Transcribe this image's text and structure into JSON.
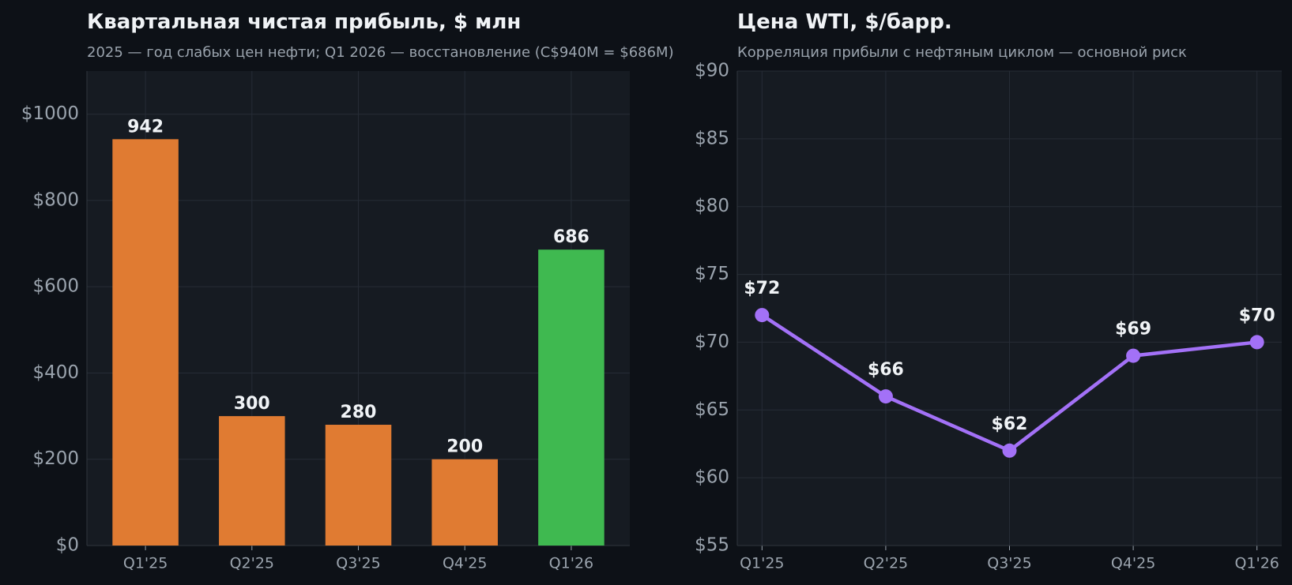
{
  "chart_data": [
    {
      "type": "bar",
      "title": "Квартальная чистая прибыль, $ млн",
      "subtitle": "2025 — год слабых цен нефти; Q1 2026 — восстановление (C$940M = $686M)",
      "categories": [
        "Q1'25",
        "Q2'25",
        "Q3'25",
        "Q4'25",
        "Q1'26"
      ],
      "values": [
        942,
        300,
        280,
        200,
        686
      ],
      "colors": [
        "#e07b32",
        "#e07b32",
        "#e07b32",
        "#e07b32",
        "#3fb950"
      ],
      "ylim": [
        0,
        1100
      ],
      "yticks": [
        {
          "value": 0,
          "label": "$0"
        },
        {
          "value": 200,
          "label": "$200"
        },
        {
          "value": 400,
          "label": "$400"
        },
        {
          "value": 600,
          "label": "$600"
        },
        {
          "value": 800,
          "label": "$800"
        },
        {
          "value": 1000,
          "label": "$1000"
        }
      ],
      "grid": true
    },
    {
      "type": "line",
      "title": "Цена WTI, $/барр.",
      "subtitle": "Корреляция прибыли с нефтяным циклом — основной риск",
      "categories": [
        "Q1'25",
        "Q2'25",
        "Q3'25",
        "Q4'25",
        "Q1'26"
      ],
      "values": [
        72,
        66,
        62,
        69,
        70
      ],
      "value_labels": [
        "$72",
        "$66",
        "$62",
        "$69",
        "$70"
      ],
      "color": "#a371f7",
      "ylim": [
        55,
        90
      ],
      "yticks": [
        {
          "value": 55,
          "label": "$55"
        },
        {
          "value": 60,
          "label": "$60"
        },
        {
          "value": 65,
          "label": "$65"
        },
        {
          "value": 70,
          "label": "$70"
        },
        {
          "value": 75,
          "label": "$75"
        },
        {
          "value": 80,
          "label": "$80"
        },
        {
          "value": 85,
          "label": "$85"
        },
        {
          "value": 90,
          "label": "$90"
        }
      ],
      "grid": true
    }
  ]
}
